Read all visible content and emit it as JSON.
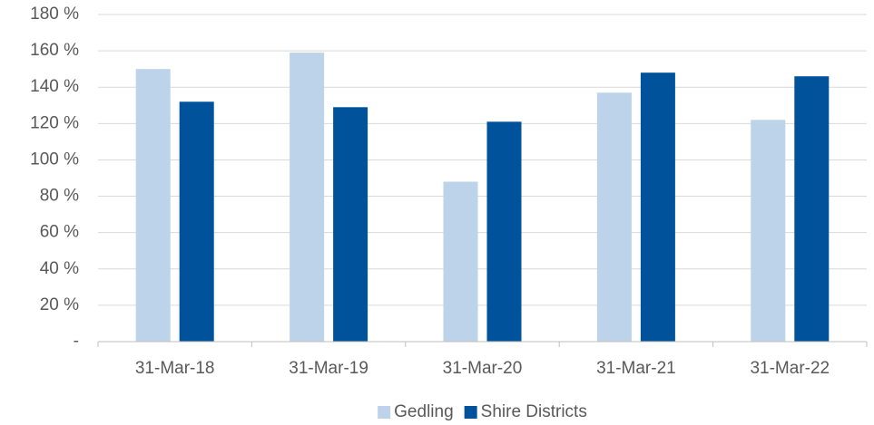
{
  "chart_data": {
    "type": "bar",
    "categories": [
      "31-Mar-18",
      "31-Mar-19",
      "31-Mar-20",
      "31-Mar-21",
      "31-Mar-22"
    ],
    "series": [
      {
        "name": "Gedling",
        "color": "#bdd3ea",
        "values": [
          150,
          159,
          88,
          137,
          122
        ]
      },
      {
        "name": "Shire Districts",
        "color": "#00539b",
        "values": [
          132,
          129,
          121,
          148,
          146
        ]
      }
    ],
    "ylim": [
      0,
      180
    ],
    "yticks": [
      {
        "value": 0,
        "label": "-"
      },
      {
        "value": 20,
        "label": "20 %"
      },
      {
        "value": 40,
        "label": "40 %"
      },
      {
        "value": 60,
        "label": "60 %"
      },
      {
        "value": 80,
        "label": "80 %"
      },
      {
        "value": 100,
        "label": "100 %"
      },
      {
        "value": 120,
        "label": "120 %"
      },
      {
        "value": 140,
        "label": "140 %"
      },
      {
        "value": 160,
        "label": "160 %"
      },
      {
        "value": 180,
        "label": "180 %"
      }
    ],
    "grid": true,
    "legend": "bottom"
  }
}
